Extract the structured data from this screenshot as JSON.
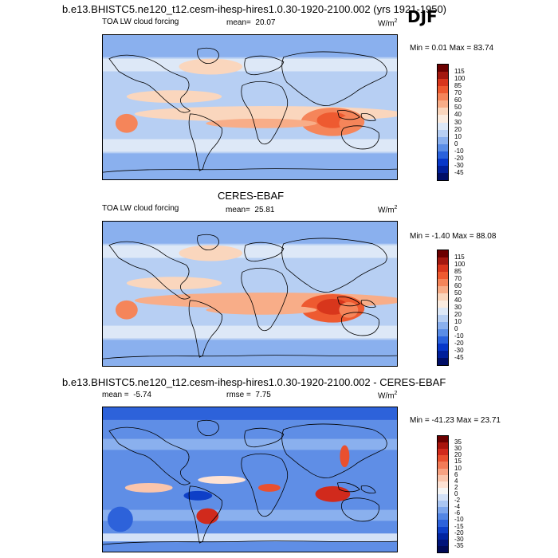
{
  "header": {
    "title": "b.e13.BHISTC5.ne120_t12.cesm-ihesp-hires1.0.30-1920-2100.002 (yrs 1921-1950)",
    "season": "DJF"
  },
  "panels": [
    {
      "id": "model",
      "variable": "TOA LW cloud forcing",
      "mean_label": "mean=",
      "mean_value": "20.07",
      "units": "W/m",
      "units_exp": "2",
      "minmax": "Min =   0.01 Max =  83.74",
      "colorbar": {
        "levels": [
          "115",
          "100",
          "85",
          "70",
          "60",
          "50",
          "40",
          "30",
          "20",
          "10",
          "0",
          "-10",
          "-20",
          "-30",
          "-45"
        ],
        "colors": [
          "#6b0000",
          "#a3180f",
          "#d8361c",
          "#ee5a30",
          "#f5855a",
          "#f8ad88",
          "#fad6bd",
          "#fbece0",
          "#dde8f7",
          "#b7cff3",
          "#8ab0ee",
          "#5a8de6",
          "#2a62dc",
          "#0737c8",
          "#001f9a",
          "#000e66"
        ]
      }
    },
    {
      "id": "obs",
      "heading": "CERES-EBAF",
      "variable": "TOA LW cloud forcing",
      "mean_label": "mean=",
      "mean_value": "25.81",
      "units": "W/m",
      "units_exp": "2",
      "minmax": "Min =  -1.40 Max =  88.08",
      "colorbar": {
        "levels": [
          "115",
          "100",
          "85",
          "70",
          "60",
          "50",
          "40",
          "30",
          "20",
          "10",
          "0",
          "-10",
          "-20",
          "-30",
          "-45"
        ],
        "colors": [
          "#6b0000",
          "#a3180f",
          "#d8361c",
          "#ee5a30",
          "#f5855a",
          "#f8ad88",
          "#fad6bd",
          "#fbece0",
          "#dde8f7",
          "#b7cff3",
          "#8ab0ee",
          "#5a8de6",
          "#2a62dc",
          "#0737c8",
          "#001f9a",
          "#000e66"
        ]
      }
    },
    {
      "id": "diff",
      "heading": "b.e13.BHISTC5.ne120_t12.cesm-ihesp-hires1.0.30-1920-2100.002 - CERES-EBAF",
      "mean_label": "mean =",
      "mean_value": "-5.74",
      "rmse_label": "rmse =",
      "rmse_value": "7.75",
      "units": "W/m",
      "units_exp": "2",
      "minmax": "Min = -41.23 Max =  23.71",
      "colorbar": {
        "levels": [
          "35",
          "30",
          "20",
          "15",
          "10",
          "6",
          "4",
          "2",
          "0",
          "-2",
          "-4",
          "-6",
          "-10",
          "-15",
          "-20",
          "-30",
          "-35"
        ],
        "colors": [
          "#6b0000",
          "#a8150d",
          "#d12a1c",
          "#e9502f",
          "#f27b57",
          "#f7a282",
          "#fac5ac",
          "#fde2d4",
          "#f5f5f5",
          "#d3e1f7",
          "#aac6f2",
          "#7da6ec",
          "#5386e4",
          "#2d62da",
          "#0e3fc7",
          "#0225a0",
          "#00147a",
          "#000a55"
        ]
      }
    }
  ]
}
